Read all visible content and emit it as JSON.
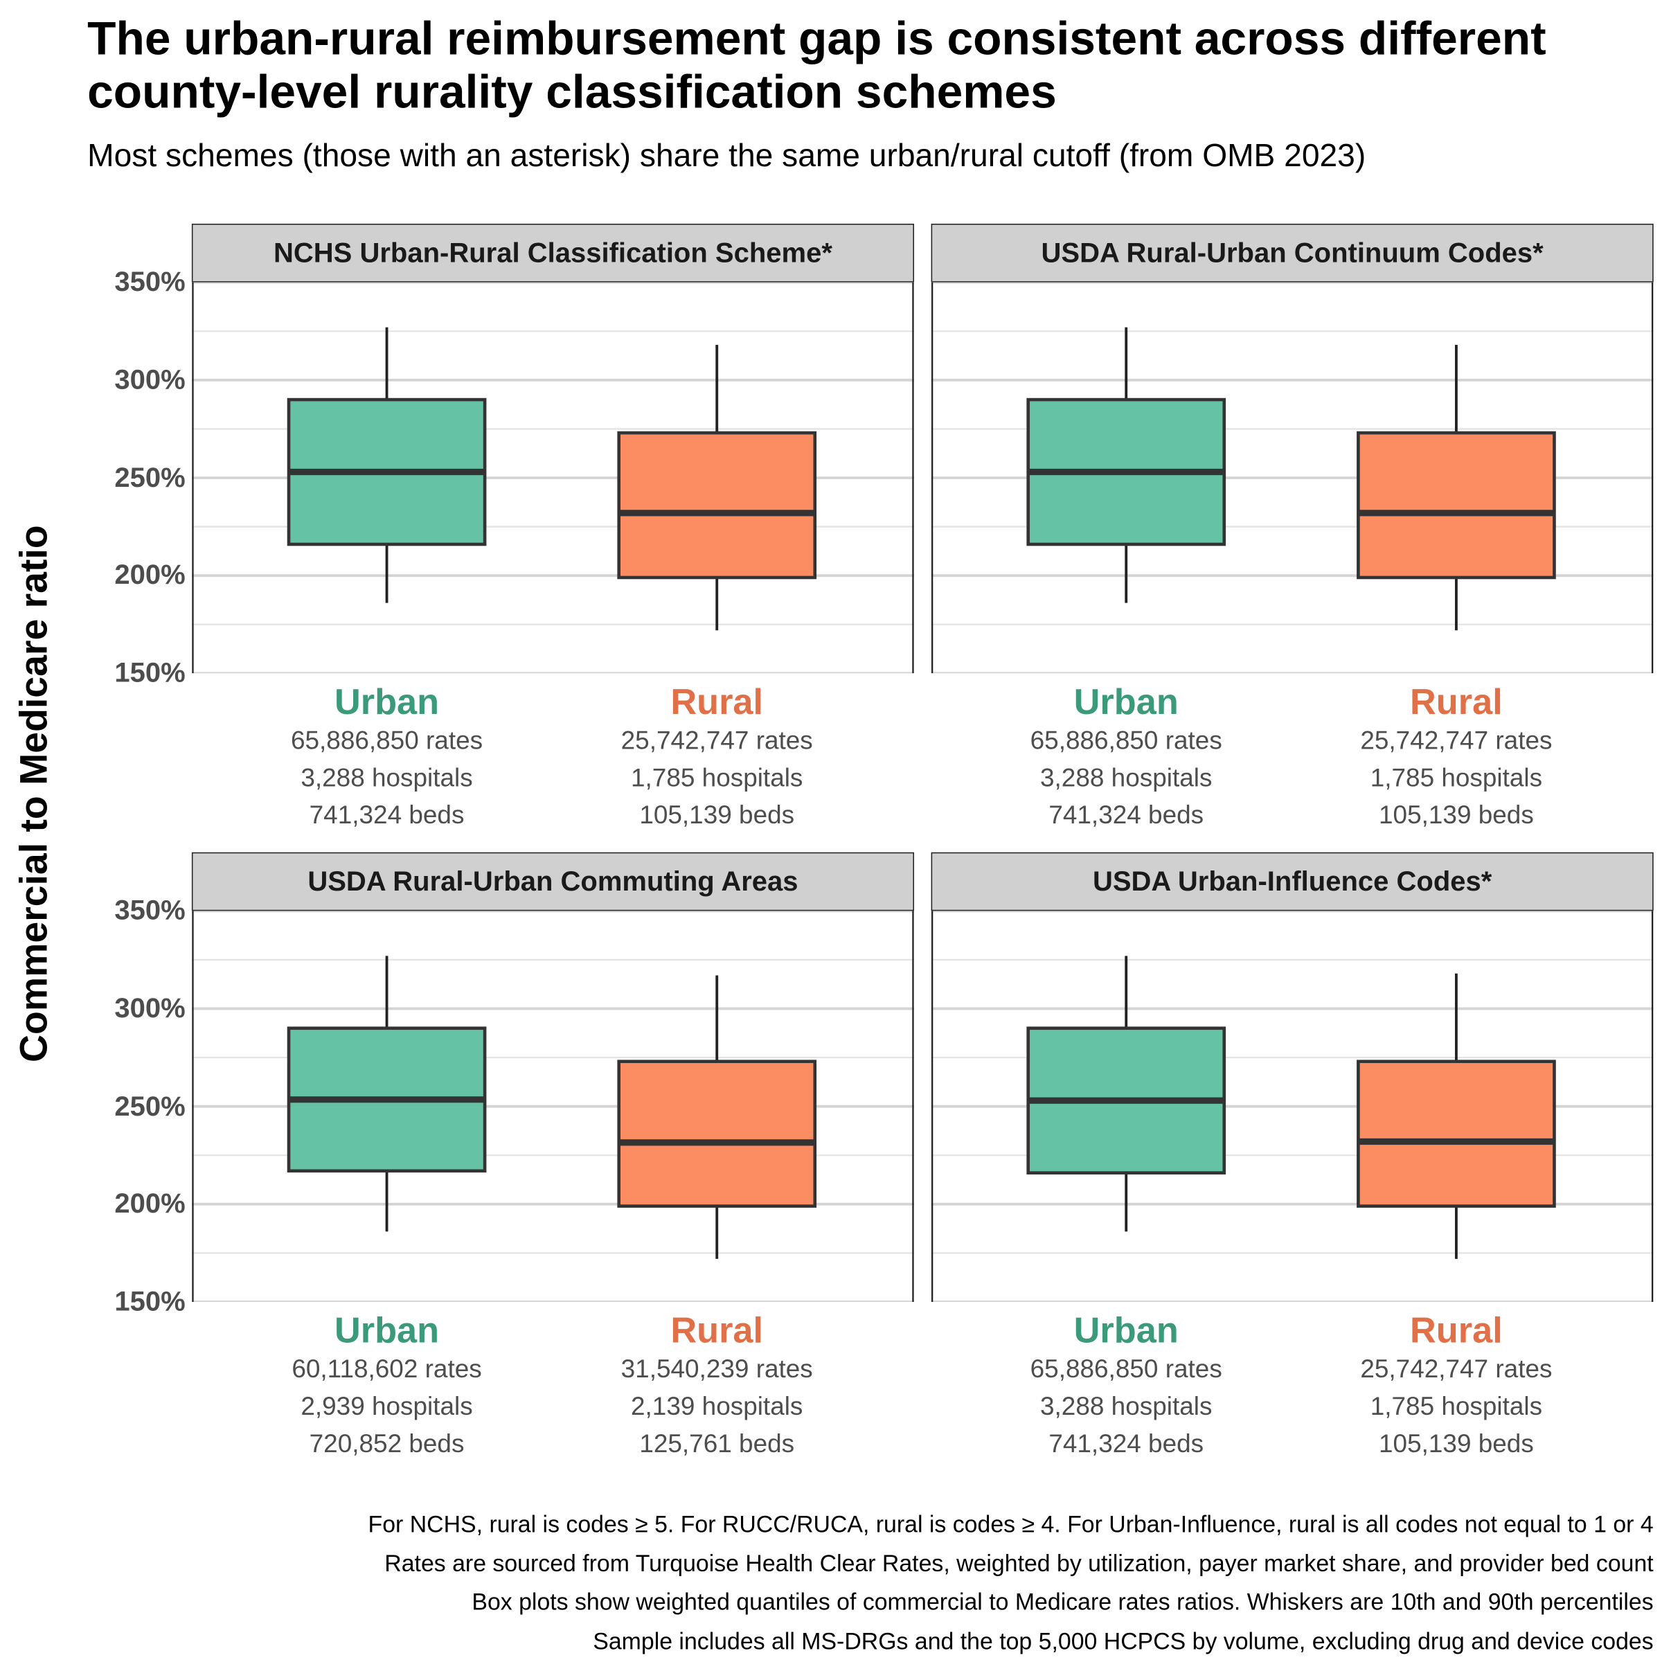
{
  "title": "The urban-rural reimbursement gap is consistent across different county-level rurality classification schemes",
  "subtitle": "Most schemes (those with an asterisk) share the same urban/rural cutoff (from OMB 2023)",
  "colors": {
    "urban_fill": "#66c2a5",
    "rural_fill": "#fc8d62",
    "urban_text": "#3a9a7a",
    "rural_text": "#e07048"
  },
  "notes": [
    "For NCHS, rural is codes ≥ 5. For RUCC/RUCA, rural is codes ≥ 4. For Urban-Influence, rural is all codes not equal to 1 or 4",
    "Rates are sourced from Turquoise Health Clear Rates, weighted by utilization, payer market share, and provider bed count",
    "Box plots show weighted quantiles of commercial to Medicare rates ratios. Whiskers are 10th and 90th percentiles",
    "Sample includes all MS-DRGs and the top 5,000 HCPCS by volume, excluding drug and device codes"
  ],
  "chart_data": {
    "type": "box",
    "ylabel": "Commercial to Medicare ratio",
    "ylim": [
      150,
      350
    ],
    "yticks": [
      "150%",
      "200%",
      "250%",
      "300%",
      "350%"
    ],
    "ytick_values": [
      150,
      200,
      250,
      300,
      350
    ],
    "panels": [
      {
        "title": "NCHS Urban-Rural Classification Scheme*",
        "groups": [
          {
            "name": "Urban",
            "p10": 186,
            "q1": 216,
            "median": 253,
            "q3": 290,
            "p90": 327,
            "rates": "65,886,850 rates",
            "hospitals": "3,288 hospitals",
            "beds": "741,324 beds"
          },
          {
            "name": "Rural",
            "p10": 172,
            "q1": 199,
            "median": 232,
            "q3": 273,
            "p90": 318,
            "rates": "25,742,747 rates",
            "hospitals": "1,785 hospitals",
            "beds": "105,139 beds"
          }
        ]
      },
      {
        "title": "USDA Rural-Urban Continuum Codes*",
        "groups": [
          {
            "name": "Urban",
            "p10": 186,
            "q1": 216,
            "median": 253,
            "q3": 290,
            "p90": 327,
            "rates": "65,886,850 rates",
            "hospitals": "3,288 hospitals",
            "beds": "741,324 beds"
          },
          {
            "name": "Rural",
            "p10": 172,
            "q1": 199,
            "median": 232,
            "q3": 273,
            "p90": 318,
            "rates": "25,742,747 rates",
            "hospitals": "1,785 hospitals",
            "beds": "105,139 beds"
          }
        ]
      },
      {
        "title": "USDA Rural-Urban Commuting Areas",
        "groups": [
          {
            "name": "Urban",
            "p10": 186,
            "q1": 217,
            "median": 253.5,
            "q3": 290,
            "p90": 327,
            "rates": "60,118,602 rates",
            "hospitals": "2,939 hospitals",
            "beds": "720,852 beds"
          },
          {
            "name": "Rural",
            "p10": 172,
            "q1": 199,
            "median": 231.5,
            "q3": 273,
            "p90": 317,
            "rates": "31,540,239 rates",
            "hospitals": "2,139 hospitals",
            "beds": "125,761 beds"
          }
        ]
      },
      {
        "title": "USDA Urban-Influence Codes*",
        "groups": [
          {
            "name": "Urban",
            "p10": 186,
            "q1": 216,
            "median": 253,
            "q3": 290,
            "p90": 327,
            "rates": "65,886,850 rates",
            "hospitals": "3,288 hospitals",
            "beds": "741,324 beds"
          },
          {
            "name": "Rural",
            "p10": 172,
            "q1": 199,
            "median": 232,
            "q3": 273,
            "p90": 318,
            "rates": "25,742,747 rates",
            "hospitals": "1,785 hospitals",
            "beds": "105,139 beds"
          }
        ]
      }
    ]
  }
}
